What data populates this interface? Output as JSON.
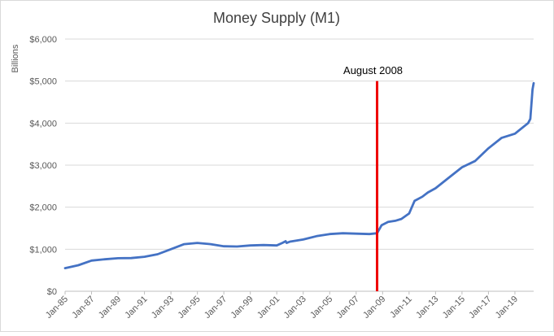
{
  "chart_data": {
    "type": "line",
    "title": "Money Supply (M1)",
    "ylabel": "Billions",
    "xlabel": "",
    "ylim": [
      0,
      6000
    ],
    "yticks": [
      0,
      1000,
      2000,
      3000,
      4000,
      5000,
      6000
    ],
    "ytick_labels": [
      "$0",
      "$1,000",
      "$2,000",
      "$3,000",
      "$4,000",
      "$5,000",
      "$6,000"
    ],
    "xlim": [
      "1985-01",
      "2020-06"
    ],
    "xticks": [
      "1985-01",
      "1987-01",
      "1989-01",
      "1991-01",
      "1993-01",
      "1995-01",
      "1997-01",
      "1999-01",
      "2001-01",
      "2003-01",
      "2005-01",
      "2007-01",
      "2009-01",
      "2011-01",
      "2013-01",
      "2015-01",
      "2017-01",
      "2019-01"
    ],
    "xtick_labels": [
      "Jan-85",
      "Jan-87",
      "Jan-89",
      "Jan-91",
      "Jan-93",
      "Jan-95",
      "Jan-97",
      "Jan-99",
      "Jan-01",
      "Jan-03",
      "Jan-05",
      "Jan-07",
      "Jan-09",
      "Jan-11",
      "Jan-13",
      "Jan-15",
      "Jan-17",
      "Jan-19"
    ],
    "grid": true,
    "series": [
      {
        "color": "#4472c4",
        "points": [
          [
            "1985-01",
            550
          ],
          [
            "1986-01",
            620
          ],
          [
            "1987-01",
            730
          ],
          [
            "1988-01",
            760
          ],
          [
            "1989-01",
            785
          ],
          [
            "1990-01",
            790
          ],
          [
            "1991-01",
            820
          ],
          [
            "1992-01",
            880
          ],
          [
            "1993-01",
            1000
          ],
          [
            "1994-01",
            1120
          ],
          [
            "1995-01",
            1150
          ],
          [
            "1996-01",
            1120
          ],
          [
            "1997-01",
            1070
          ],
          [
            "1998-01",
            1065
          ],
          [
            "1999-01",
            1090
          ],
          [
            "2000-01",
            1100
          ],
          [
            "2001-01",
            1090
          ],
          [
            "2001-06",
            1150
          ],
          [
            "2001-09",
            1190
          ],
          [
            "2001-10",
            1150
          ],
          [
            "2002-01",
            1180
          ],
          [
            "2003-01",
            1230
          ],
          [
            "2004-01",
            1310
          ],
          [
            "2005-01",
            1360
          ],
          [
            "2006-01",
            1380
          ],
          [
            "2007-01",
            1370
          ],
          [
            "2008-01",
            1360
          ],
          [
            "2008-08",
            1380
          ],
          [
            "2008-12",
            1570
          ],
          [
            "2009-06",
            1650
          ],
          [
            "2010-01",
            1680
          ],
          [
            "2010-06",
            1720
          ],
          [
            "2011-01",
            1850
          ],
          [
            "2011-06",
            2150
          ],
          [
            "2012-01",
            2250
          ],
          [
            "2012-06",
            2350
          ],
          [
            "2013-01",
            2450
          ],
          [
            "2014-01",
            2700
          ],
          [
            "2015-01",
            2950
          ],
          [
            "2016-01",
            3100
          ],
          [
            "2017-01",
            3400
          ],
          [
            "2018-01",
            3650
          ],
          [
            "2019-01",
            3750
          ],
          [
            "2020-01",
            4000
          ],
          [
            "2020-03",
            4100
          ],
          [
            "2020-05",
            4800
          ],
          [
            "2020-06",
            4950
          ]
        ]
      }
    ],
    "annotations": [
      {
        "x": "2008-08",
        "label": "August 2008",
        "color": "#ee0000"
      }
    ]
  }
}
